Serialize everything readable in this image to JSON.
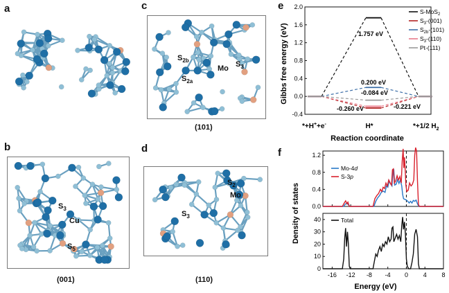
{
  "panels": {
    "a": {
      "label": "a"
    },
    "b": {
      "label": "b",
      "caption": "(001)",
      "atoms": {
        "s3": "S",
        "s3_sub": "3",
        "cu": "Cu",
        "s5": "S",
        "s5_sub": "5"
      }
    },
    "c": {
      "label": "c",
      "caption": "(101)",
      "atoms": {
        "s2b": "S",
        "s2b_sub": "2b",
        "s2a": "S",
        "s2a_sub": "2a",
        "mo": "Mo",
        "s3": "S",
        "s3_sub": "3"
      }
    },
    "d": {
      "label": "d",
      "caption": "(110)",
      "atoms": {
        "s2": "S",
        "s2_sub": "2",
        "mo": "Mo",
        "s3": "S",
        "s3_sub": "3"
      }
    },
    "e": {
      "label": "e"
    },
    "f": {
      "label": "f"
    }
  },
  "colors": {
    "s_atom": "#8fbfd6",
    "mo_atom": "#1f6fa6",
    "cu_atom": "#e2a080",
    "bond": "#6aa0c0",
    "black": "#111111",
    "s3_001": "#b22222",
    "s2b_101": "#3d6fa8",
    "s3_110": "#e87a8a",
    "pt_111": "#9a9a9a",
    "mo4d": "#2878c8",
    "s3p": "#d8202c"
  },
  "chart_data": [
    {
      "type": "line",
      "title": "",
      "xlabel": "Reaction coordinate",
      "ylabel": "Gibbs free energy (eV)",
      "ylim": [
        -0.4,
        2.0
      ],
      "yticks": [
        "-0.4",
        "0.0",
        "0.4",
        "0.8",
        "1.2",
        "1.6",
        "2.0"
      ],
      "categories": [
        "*+H⁺+e⁻",
        "H*",
        "*+1/2 H₂"
      ],
      "category_labels": {
        "left": "*+H",
        "left_sup": "+",
        "left_mid": "+e",
        "left_sup2": "-",
        "mid": "H*",
        "right": "*+1/2 H",
        "right_sub": "2"
      },
      "series": [
        {
          "name": "S-MoS₂",
          "legend": "S-MoS",
          "legend_sub": "2",
          "values": [
            0,
            1.757,
            0
          ],
          "color": "#111111"
        },
        {
          "name": "S₃-(001)",
          "legend": "S",
          "legend_sub": "3",
          "legend_rest": "-(001)",
          "values": [
            0,
            -0.26,
            0
          ],
          "color": "#b22222"
        },
        {
          "name": "S₂b-(101)",
          "legend": "S",
          "legend_sub": "2b",
          "legend_rest": "-(101)",
          "values": [
            0,
            0.2,
            0
          ],
          "color": "#3d6fa8"
        },
        {
          "name": "S₃-(110)",
          "legend": "S",
          "legend_sub": "3",
          "legend_rest": "-(110)",
          "values": [
            0,
            -0.221,
            0
          ],
          "color": "#e87a8a"
        },
        {
          "name": "Pt-(111)",
          "legend": "Pt-(111)",
          "values": [
            0,
            -0.084,
            0
          ],
          "color": "#9a9a9a"
        }
      ],
      "annotations": [
        "1.757 eV",
        "0.200 eV",
        "-0.084 eV",
        "-0.260 eV",
        "-0.221 eV"
      ]
    },
    {
      "type": "line",
      "title": "",
      "xlabel": "Energy (eV)",
      "ylabel": "Density of states",
      "xlim": [
        -18,
        8
      ],
      "xticks": [
        "-16",
        "-12",
        "-8",
        "-4",
        "0",
        "4",
        "8"
      ],
      "top": {
        "ylim": [
          0,
          1.3
        ],
        "yticks": [
          "0.0",
          "0.4",
          "0.8",
          "1.2"
        ],
        "series": [
          {
            "name": "Mo-4d",
            "legend": "Mo-4",
            "legend_it": "d",
            "color": "#2878c8",
            "points": [
              [
                -18,
                0
              ],
              [
                -13.5,
                0
              ],
              [
                -13.2,
                0.05
              ],
              [
                -12.8,
                0.08
              ],
              [
                -12.5,
                0.04
              ],
              [
                -12.2,
                0
              ],
              [
                -7,
                0
              ],
              [
                -6.6,
                0.12
              ],
              [
                -6.2,
                0.2
              ],
              [
                -5.8,
                0.25
              ],
              [
                -5.4,
                0.33
              ],
              [
                -5,
                0.36
              ],
              [
                -4.6,
                0.33
              ],
              [
                -4.3,
                0.48
              ],
              [
                -4,
                0.45
              ],
              [
                -3.7,
                0.6
              ],
              [
                -3.4,
                0.53
              ],
              [
                -3.1,
                0.48
              ],
              [
                -2.9,
                0.82
              ],
              [
                -2.7,
                0.85
              ],
              [
                -2.5,
                0.5
              ],
              [
                -2.2,
                0.52
              ],
              [
                -1.9,
                0.63
              ],
              [
                -1.6,
                0.54
              ],
              [
                -1.3,
                0.62
              ],
              [
                -1,
                0.48
              ],
              [
                -0.8,
                0.28
              ],
              [
                -0.6,
                0.18
              ],
              [
                -0.4,
                0.17
              ],
              [
                -0.2,
                0.16
              ],
              [
                0,
                0.15
              ],
              [
                0.3,
                0.12
              ],
              [
                0.6,
                0.08
              ],
              [
                0.9,
                0.12
              ],
              [
                1.2,
                0.08
              ],
              [
                1.5,
                0.14
              ],
              [
                1.8,
                0.12
              ],
              [
                2.1,
                0.15
              ],
              [
                2.4,
                0.06
              ],
              [
                2.7,
                0
              ],
              [
                8,
                0
              ]
            ]
          },
          {
            "name": "S-3p",
            "legend": "S-3",
            "legend_it": "p",
            "color": "#d8202c",
            "points": [
              [
                -18,
                0
              ],
              [
                -13.8,
                0
              ],
              [
                -13.4,
                0.08
              ],
              [
                -13.1,
                0.13
              ],
              [
                -12.8,
                0.06
              ],
              [
                -12.6,
                0.1
              ],
              [
                -12.3,
                0
              ],
              [
                -7.2,
                0
              ],
              [
                -6.8,
                0.18
              ],
              [
                -6.4,
                0.25
              ],
              [
                -6,
                0.3
              ],
              [
                -5.6,
                0.4
              ],
              [
                -5.3,
                0.35
              ],
              [
                -5,
                0.45
              ],
              [
                -4.7,
                0.42
              ],
              [
                -4.4,
                0.55
              ],
              [
                -4.1,
                0.48
              ],
              [
                -3.8,
                0.62
              ],
              [
                -3.5,
                0.55
              ],
              [
                -3.2,
                0.5
              ],
              [
                -3,
                0.86
              ],
              [
                -2.8,
                0.88
              ],
              [
                -2.6,
                0.55
              ],
              [
                -2.3,
                0.6
              ],
              [
                -2,
                0.72
              ],
              [
                -1.7,
                0.62
              ],
              [
                -1.4,
                0.7
              ],
              [
                -1.1,
                0.55
              ],
              [
                -0.9,
                1.05
              ],
              [
                -0.7,
                1.35
              ],
              [
                -0.55,
                0.9
              ],
              [
                -0.4,
                1.15
              ],
              [
                -0.25,
                0.85
              ],
              [
                -0.1,
                0.5
              ],
              [
                0.1,
                0.35
              ],
              [
                0.4,
                0.38
              ],
              [
                0.7,
                0.55
              ],
              [
                1,
                0.48
              ],
              [
                1.3,
                0.52
              ],
              [
                1.6,
                0.62
              ],
              [
                1.8,
                1.2
              ],
              [
                2,
                1.38
              ],
              [
                2.2,
                1.3
              ],
              [
                2.4,
                0.6
              ],
              [
                2.6,
                0.05
              ],
              [
                2.8,
                0
              ],
              [
                8,
                0
              ]
            ]
          }
        ]
      },
      "bottom": {
        "ylim": [
          0,
          45
        ],
        "yticks": [
          "0",
          "10",
          "20",
          "30",
          "40"
        ],
        "series": [
          {
            "name": "Total",
            "legend": "Total",
            "color": "#111111",
            "points": [
              [
                -18,
                0
              ],
              [
                -13.8,
                0
              ],
              [
                -13.5,
                8
              ],
              [
                -13.3,
                25
              ],
              [
                -13.1,
                33
              ],
              [
                -12.9,
                18
              ],
              [
                -12.7,
                30
              ],
              [
                -12.5,
                20
              ],
              [
                -12.3,
                2
              ],
              [
                -12.1,
                0
              ],
              [
                -7.2,
                0
              ],
              [
                -6.9,
                6
              ],
              [
                -6.6,
                12
              ],
              [
                -6.3,
                10
              ],
              [
                -6,
                15
              ],
              [
                -5.7,
                18
              ],
              [
                -5.4,
                14
              ],
              [
                -5.1,
                20
              ],
              [
                -4.8,
                18
              ],
              [
                -4.5,
                22
              ],
              [
                -4.2,
                20
              ],
              [
                -3.9,
                26
              ],
              [
                -3.6,
                22
              ],
              [
                -3.3,
                24
              ],
              [
                -3.1,
                33
              ],
              [
                -2.9,
                34
              ],
              [
                -2.7,
                22
              ],
              [
                -2.4,
                25
              ],
              [
                -2.1,
                28
              ],
              [
                -1.8,
                24
              ],
              [
                -1.5,
                27
              ],
              [
                -1.2,
                22
              ],
              [
                -1,
                35
              ],
              [
                -0.8,
                42
              ],
              [
                -0.6,
                32
              ],
              [
                -0.4,
                38
              ],
              [
                -0.2,
                28
              ],
              [
                0,
                8
              ],
              [
                0.2,
                2
              ],
              [
                0.5,
                0
              ],
              [
                0.9,
                0
              ],
              [
                1.2,
                5
              ],
              [
                1.5,
                12
              ],
              [
                1.8,
                28
              ],
              [
                2.1,
                32
              ],
              [
                2.4,
                26
              ],
              [
                2.6,
                4
              ],
              [
                2.8,
                0
              ],
              [
                8,
                0
              ]
            ]
          }
        ]
      },
      "vline_x": 0
    }
  ]
}
